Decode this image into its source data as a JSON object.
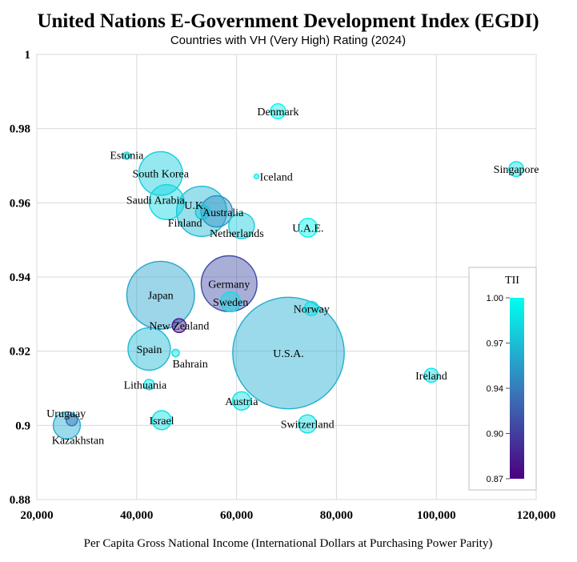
{
  "chart_data": {
    "type": "scatter",
    "title": "United Nations E-Government Development Index (EGDI)",
    "subtitle": "Countries with VH (Very High) Rating (2024)",
    "xlabel": "Per Capita Gross National Income  (International Dollars at Purchasing Power Parity)",
    "ylabel": "",
    "xlim": [
      20000,
      120000
    ],
    "ylim": [
      0.88,
      1.0
    ],
    "x_ticks": [
      "20,000",
      "40,000",
      "60,000",
      "80,000",
      "100,000",
      "120,000"
    ],
    "y_ticks": [
      "0.88",
      "0.9",
      "0.92",
      "0.94",
      "0.96",
      "0.98",
      "1"
    ],
    "grid": true,
    "color_scale": {
      "title": "TII",
      "min": 0.87,
      "max": 1.0,
      "ticks": [
        "0.87",
        "0.90",
        "0.94",
        "0.97",
        "1.00"
      ],
      "low_color": "#4b0082",
      "mid_color": "#3b6fb6",
      "high_color": "#00fff0",
      "placement": "right"
    },
    "points": [
      {
        "label": "Denmark",
        "x": 68300,
        "y": 0.9847,
        "size": 6,
        "tii": 0.995
      },
      {
        "label": "Estonia",
        "x": 38000,
        "y": 0.9727,
        "size": 1.4,
        "tii": 0.985
      },
      {
        "label": "South Korea",
        "x": 44800,
        "y": 0.9679,
        "size": 51.7,
        "tii": 0.975
      },
      {
        "label": "Iceland",
        "x": 64000,
        "y": 0.9671,
        "size": 0.4,
        "tii": 0.99
      },
      {
        "label": "Singapore",
        "x": 116000,
        "y": 0.9691,
        "size": 5.9,
        "tii": 0.985
      },
      {
        "label": "Saudi Arabia",
        "x": 46000,
        "y": 0.9602,
        "size": 33,
        "tii": 0.98
      },
      {
        "label": "U.K.",
        "x": 53000,
        "y": 0.9577,
        "size": 68,
        "tii": 0.965
      },
      {
        "label": "Australia",
        "x": 56000,
        "y": 0.9577,
        "size": 26.6,
        "tii": 0.945
      },
      {
        "label": "Finland",
        "x": 53200,
        "y": 0.9575,
        "size": 5.6,
        "tii": 0.97
      },
      {
        "label": "Netherlands",
        "x": 61000,
        "y": 0.9538,
        "size": 17.9,
        "tii": 0.975
      },
      {
        "label": "U.A.E.",
        "x": 74300,
        "y": 0.9533,
        "size": 9.5,
        "tii": 0.995
      },
      {
        "label": "Germany",
        "x": 58500,
        "y": 0.9382,
        "size": 84,
        "tii": 0.91
      },
      {
        "label": "Japan",
        "x": 44800,
        "y": 0.9351,
        "size": 124,
        "tii": 0.955
      },
      {
        "label": "Sweden",
        "x": 58800,
        "y": 0.9333,
        "size": 10.6,
        "tii": 0.985
      },
      {
        "label": "Norway",
        "x": 75000,
        "y": 0.9315,
        "size": 5.5,
        "tii": 0.985
      },
      {
        "label": "New Zealand",
        "x": 48500,
        "y": 0.9269,
        "size": 5.2,
        "tii": 0.88
      },
      {
        "label": "Spain",
        "x": 42500,
        "y": 0.9206,
        "size": 48.4,
        "tii": 0.965
      },
      {
        "label": "Bahrain",
        "x": 47800,
        "y": 0.9195,
        "size": 1.5,
        "tii": 0.985
      },
      {
        "label": "U.S.A.",
        "x": 70400,
        "y": 0.9195,
        "size": 336,
        "tii": 0.96
      },
      {
        "label": "Ireland",
        "x": 99000,
        "y": 0.9135,
        "size": 5.3,
        "tii": 0.985
      },
      {
        "label": "Lithuania",
        "x": 42500,
        "y": 0.911,
        "size": 2.9,
        "tii": 0.985
      },
      {
        "label": "Austria",
        "x": 61000,
        "y": 0.9066,
        "size": 9.1,
        "tii": 0.985
      },
      {
        "label": "Uruguay",
        "x": 27000,
        "y": 0.9014,
        "size": 3.4,
        "tii": 0.93
      },
      {
        "label": "Kazakhstan",
        "x": 26000,
        "y": 0.9,
        "size": 19.8,
        "tii": 0.96
      },
      {
        "label": "Israel",
        "x": 45000,
        "y": 0.9014,
        "size": 9.8,
        "tii": 0.985
      },
      {
        "label": "Switzerland",
        "x": 74200,
        "y": 0.9004,
        "size": 8.8,
        "tii": 0.985
      }
    ]
  }
}
